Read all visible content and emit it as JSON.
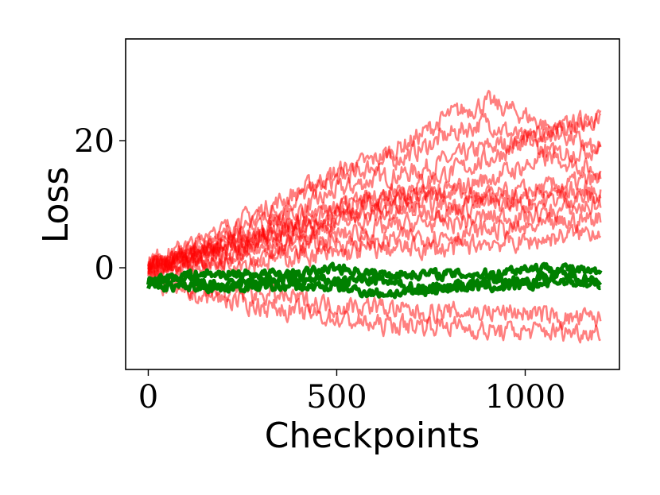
{
  "chart_data": {
    "type": "line",
    "title": "",
    "xlabel": "Checkpoints",
    "ylabel": "Loss",
    "xlim": [
      -60,
      1250
    ],
    "ylim": [
      -16,
      36
    ],
    "xticks": [
      0,
      500,
      1000
    ],
    "yticks": [
      0,
      20
    ],
    "grid": false,
    "legend": "none",
    "colors": {
      "red": "#ff0000",
      "green": "#008000"
    },
    "series": [
      {
        "color": "red",
        "alpha": 0.5,
        "x": [
          0,
          100,
          200,
          300,
          400,
          500,
          600,
          700,
          800,
          900,
          1000,
          1100,
          1200
        ],
        "y": [
          0,
          2,
          4,
          6,
          9,
          12,
          14,
          15,
          17,
          19,
          20,
          22,
          24
        ]
      },
      {
        "color": "red",
        "alpha": 0.5,
        "x": [
          0,
          100,
          200,
          300,
          400,
          500,
          600,
          700,
          800,
          900,
          1000,
          1100,
          1200
        ],
        "y": [
          0,
          3,
          5,
          8,
          11,
          14,
          16,
          18,
          21,
          23,
          20,
          17,
          15
        ]
      },
      {
        "color": "red",
        "alpha": 0.5,
        "x": [
          0,
          100,
          200,
          300,
          400,
          500,
          600,
          700,
          800,
          900,
          1000,
          1100,
          1200
        ],
        "y": [
          1,
          3,
          6,
          9,
          12,
          15,
          17,
          20,
          24,
          26,
          24,
          21,
          18
        ]
      },
      {
        "color": "red",
        "alpha": 0.5,
        "x": [
          0,
          100,
          200,
          300,
          400,
          500,
          600,
          700,
          800,
          900,
          1000,
          1100,
          1200
        ],
        "y": [
          0,
          2,
          3,
          5,
          7,
          9,
          11,
          13,
          15,
          17,
          20,
          22,
          23
        ]
      },
      {
        "color": "red",
        "alpha": 0.5,
        "x": [
          0,
          100,
          200,
          300,
          400,
          500,
          600,
          700,
          800,
          900,
          1000,
          1100,
          1200
        ],
        "y": [
          0,
          1,
          3,
          4,
          6,
          8,
          10,
          11,
          12,
          14,
          16,
          18,
          19
        ]
      },
      {
        "color": "red",
        "alpha": 0.5,
        "x": [
          0,
          100,
          200,
          300,
          400,
          500,
          600,
          700,
          800,
          900,
          1000,
          1100,
          1200
        ],
        "y": [
          0,
          2,
          4,
          6,
          8,
          10,
          11,
          12,
          12,
          11,
          12,
          13,
          14
        ]
      },
      {
        "color": "red",
        "alpha": 0.5,
        "x": [
          0,
          100,
          200,
          300,
          400,
          500,
          600,
          700,
          800,
          900,
          1000,
          1100,
          1200
        ],
        "y": [
          0,
          2,
          3,
          5,
          6,
          8,
          9,
          10,
          10,
          11,
          11,
          12,
          12
        ]
      },
      {
        "color": "red",
        "alpha": 0.5,
        "x": [
          0,
          100,
          200,
          300,
          400,
          500,
          600,
          700,
          800,
          900,
          1000,
          1100,
          1200
        ],
        "y": [
          0,
          1,
          2,
          4,
          5,
          7,
          8,
          9,
          9,
          10,
          10,
          11,
          11
        ]
      },
      {
        "color": "red",
        "alpha": 0.5,
        "x": [
          0,
          100,
          200,
          300,
          400,
          500,
          600,
          700,
          800,
          900,
          1000,
          1100,
          1200
        ],
        "y": [
          0,
          1,
          2,
          3,
          4,
          5,
          6,
          7,
          7,
          8,
          8,
          9,
          10
        ]
      },
      {
        "color": "red",
        "alpha": 0.5,
        "x": [
          0,
          100,
          200,
          300,
          400,
          500,
          600,
          700,
          800,
          900,
          1000,
          1100,
          1200
        ],
        "y": [
          0,
          1,
          1,
          2,
          3,
          4,
          4,
          5,
          5,
          6,
          6,
          7,
          8
        ]
      },
      {
        "color": "red",
        "alpha": 0.5,
        "x": [
          0,
          100,
          200,
          300,
          400,
          500,
          600,
          700,
          800,
          900,
          1000,
          1100,
          1200
        ],
        "y": [
          0,
          0,
          1,
          1,
          2,
          2,
          3,
          3,
          3,
          4,
          4,
          5,
          6
        ]
      },
      {
        "color": "red",
        "alpha": 0.5,
        "x": [
          0,
          100,
          200,
          300,
          400,
          500,
          600,
          700,
          800,
          900,
          1000,
          1100,
          1200
        ],
        "y": [
          -2,
          -4,
          -5,
          -6,
          -7,
          -8,
          -9,
          -9,
          -9,
          -10,
          -10,
          -10,
          -10
        ]
      },
      {
        "color": "red",
        "alpha": 0.5,
        "x": [
          0,
          100,
          200,
          300,
          400,
          500,
          600,
          700,
          800,
          900,
          1000,
          1100,
          1200
        ],
        "y": [
          -1,
          -3,
          -4,
          -4,
          -5,
          -6,
          -6,
          -7,
          -7,
          -7,
          -7,
          -8,
          -8
        ]
      },
      {
        "color": "green",
        "alpha": 1.0,
        "x": [
          0,
          100,
          200,
          300,
          400,
          500,
          600,
          700,
          800,
          900,
          1000,
          1100,
          1200
        ],
        "y": [
          -2,
          -2,
          -3,
          -2,
          -2,
          -2,
          -2,
          -3,
          -3,
          -2,
          -2,
          -1,
          -2
        ]
      },
      {
        "color": "green",
        "alpha": 1.0,
        "x": [
          0,
          100,
          200,
          300,
          400,
          500,
          600,
          700,
          800,
          900,
          1000,
          1100,
          1200
        ],
        "y": [
          -3,
          -3,
          -3,
          -3,
          -3,
          -3,
          -4,
          -4,
          -3,
          -3,
          -3,
          -2,
          -3
        ]
      },
      {
        "color": "green",
        "alpha": 1.0,
        "x": [
          0,
          100,
          200,
          300,
          400,
          500,
          600,
          700,
          800,
          900,
          1000,
          1100,
          1200
        ],
        "y": [
          -2,
          -1,
          -1,
          -1,
          -1,
          0,
          -1,
          -1,
          -1,
          -1,
          0,
          0,
          -1
        ]
      }
    ]
  }
}
